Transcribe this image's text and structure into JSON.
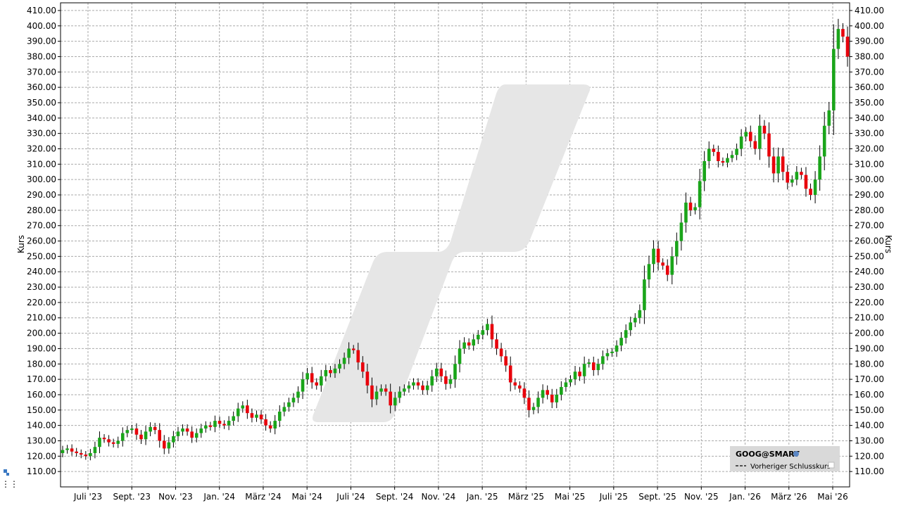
{
  "chart_data": {
    "type": "candlestick",
    "ylabel": "Kurs",
    "ylim": [
      100,
      415
    ],
    "yticks": [
      110,
      120,
      130,
      140,
      150,
      160,
      170,
      180,
      190,
      200,
      210,
      220,
      230,
      240,
      250,
      260,
      270,
      280,
      290,
      300,
      310,
      320,
      330,
      340,
      350,
      360,
      370,
      380,
      390,
      400,
      410
    ],
    "ytick_labels": [
      "110.00",
      "120.00",
      "130.00",
      "140.00",
      "150.00",
      "160.00",
      "170.00",
      "180.00",
      "190.00",
      "200.00",
      "210.00",
      "220.00",
      "230.00",
      "240.00",
      "250.00",
      "260.00",
      "270.00",
      "280.00",
      "290.00",
      "300.00",
      "310.00",
      "320.00",
      "330.00",
      "340.00",
      "350.00",
      "360.00",
      "370.00",
      "380.00",
      "390.00",
      "400.00",
      "410.00"
    ],
    "xtick_labels": [
      "Juli '23",
      "Sept. '23",
      "Nov. '23",
      "Jan. '24",
      "März '24",
      "Mai '24",
      "Juli '24",
      "Sept. '24",
      "Nov. '24",
      "Jan. '25",
      "März '25",
      "Mai '25",
      "Juli '25",
      "Sept. '25",
      "Nov. '25",
      "Jan. '26",
      "März '26",
      "Mai '26"
    ],
    "grid": true,
    "legend": {
      "position": "bottom-right",
      "title": "GOOG@SMART",
      "entries": [
        "Vorheriger Schlusskurs"
      ]
    },
    "series": [
      {
        "name": "GOOG@SMART",
        "close": [
          124,
          125,
          123,
          122,
          121,
          120,
          122,
          126,
          132,
          131,
          129,
          128,
          130,
          135,
          137,
          138,
          134,
          131,
          136,
          139,
          137,
          130,
          125,
          129,
          133,
          136,
          138,
          136,
          132,
          135,
          138,
          140,
          139,
          143,
          141,
          140,
          143,
          146,
          151,
          153,
          148,
          145,
          147,
          144,
          140,
          138,
          143,
          149,
          152,
          155,
          158,
          162,
          170,
          174,
          168,
          166,
          172,
          176,
          174,
          177,
          180,
          184,
          190,
          189,
          181,
          175,
          166,
          157,
          162,
          164,
          162,
          153,
          158,
          162,
          164,
          166,
          168,
          166,
          163,
          166,
          172,
          177,
          172,
          167,
          170,
          180,
          190,
          194,
          192,
          196,
          199,
          202,
          206,
          196,
          190,
          185,
          179,
          168,
          166,
          164,
          158,
          150,
          152,
          158,
          163,
          160,
          155,
          160,
          165,
          168,
          170,
          175,
          172,
          180,
          181,
          176,
          180,
          185,
          187,
          188,
          192,
          197,
          202,
          207,
          210,
          215,
          235,
          245,
          255,
          246,
          244,
          238,
          250,
          260,
          272,
          285,
          280,
          282,
          299,
          312,
          320,
          318,
          312,
          311,
          314,
          316,
          320,
          328,
          331,
          325,
          320,
          335,
          330,
          315,
          304,
          315,
          305,
          298,
          300,
          305,
          303,
          294,
          290,
          300,
          315,
          335,
          345,
          385,
          398,
          393,
          380
        ],
        "up_color": "#1aa51a",
        "down_color": "#e8000b"
      }
    ]
  }
}
